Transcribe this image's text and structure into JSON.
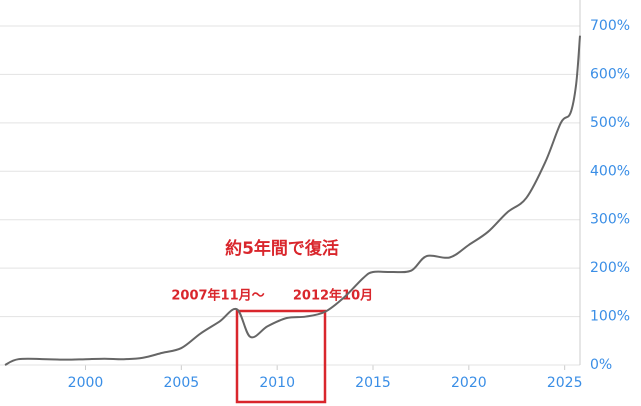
{
  "chart_data": {
    "type": "line",
    "x": [
      1995.8,
      1996.5,
      1998,
      1999,
      2000,
      2001,
      2002,
      2003,
      2004,
      2005,
      2006,
      2007,
      2007.9,
      2008.6,
      2009.5,
      2010.5,
      2011.5,
      2012.5,
      2013.5,
      2014.5,
      2015,
      2016,
      2017,
      2017.8,
      2019,
      2020,
      2021,
      2022,
      2023,
      2024,
      2024.8,
      2025.3,
      2025.6,
      2025.8
    ],
    "series": [
      {
        "color": "#666666",
        "values": [
          0,
          12,
          12,
          11,
          12,
          13,
          12,
          15,
          25,
          35,
          65,
          90,
          115,
          58,
          80,
          97,
          100,
          110,
          140,
          180,
          192,
          192,
          195,
          225,
          222,
          248,
          275,
          315,
          345,
          420,
          500,
          520,
          580,
          680
        ]
      }
    ],
    "xlim": [
      1995.8,
      2025.8
    ],
    "xticks": [
      2000,
      2005,
      2010,
      2015,
      2020,
      2025
    ],
    "ylim": [
      0,
      700
    ],
    "yticks": [
      {
        "value": 0,
        "label": "0%"
      },
      {
        "value": 100,
        "label": "100%"
      },
      {
        "value": 200,
        "label": "200%"
      },
      {
        "value": 300,
        "label": "300%"
      },
      {
        "value": 400,
        "label": "400%"
      },
      {
        "value": 500,
        "label": "500%"
      },
      {
        "value": 600,
        "label": "600%"
      },
      {
        "value": 700,
        "label": "700%"
      }
    ],
    "grid": true,
    "annotations": [
      "約5年間で復活",
      "2007年11月〜",
      "2012年10月"
    ]
  }
}
